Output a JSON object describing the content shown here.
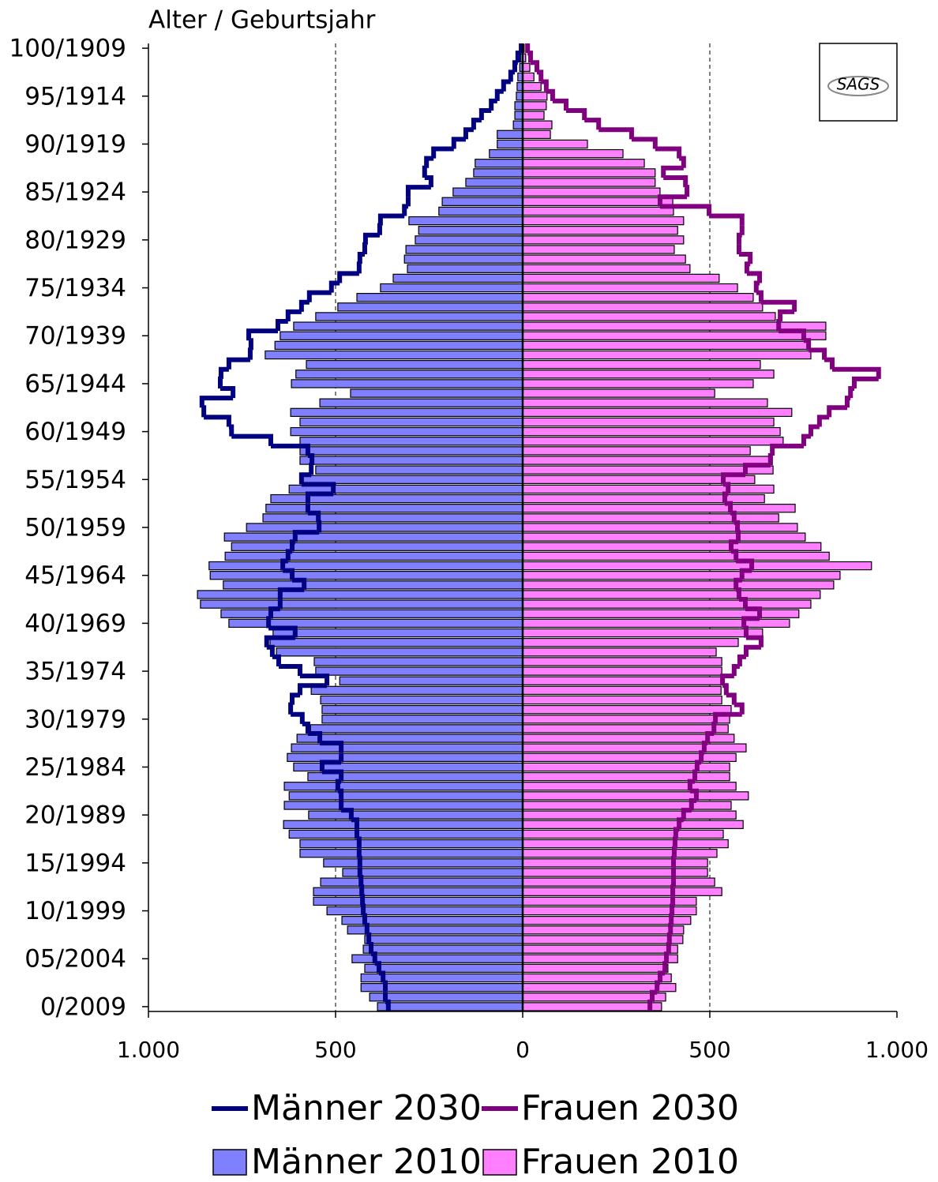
{
  "chart_data": {
    "type": "pyramid",
    "y_axis_label": "Alter / Geburtsjahr",
    "logo": "SAGS",
    "categories": [
      "0/2009",
      null,
      null,
      null,
      null,
      "05/2004",
      null,
      null,
      null,
      null,
      "10/1999",
      null,
      null,
      null,
      null,
      "15/1994",
      null,
      null,
      null,
      null,
      "20/1989",
      null,
      null,
      null,
      null,
      "25/1984",
      null,
      null,
      null,
      null,
      "30/1979",
      null,
      null,
      null,
      null,
      "35/1974",
      null,
      null,
      null,
      null,
      "40/1969",
      null,
      null,
      null,
      null,
      "45/1964",
      null,
      null,
      null,
      null,
      "50/1959",
      null,
      null,
      null,
      null,
      "55/1954",
      null,
      null,
      null,
      null,
      "60/1949",
      null,
      null,
      null,
      null,
      "65/1944",
      null,
      null,
      null,
      null,
      "70/1939",
      null,
      null,
      null,
      null,
      "75/1934",
      null,
      null,
      null,
      null,
      "80/1929",
      null,
      null,
      null,
      null,
      "85/1924",
      null,
      null,
      null,
      null,
      "90/1919",
      null,
      null,
      null,
      null,
      "95/1914",
      null,
      null,
      null,
      null,
      "100/1909"
    ],
    "xlim": [
      -1000,
      1000
    ],
    "xticks": [
      {
        "value": -1000,
        "label": "1.000"
      },
      {
        "value": -500,
        "label": "500"
      },
      0,
      500,
      {
        "value": 1000,
        "label": "1.000"
      }
    ],
    "grid": true,
    "series": [
      {
        "name": "Männer 2030",
        "kind": "line",
        "side": "left",
        "color": "#000080",
        "values": [
          359,
          367,
          367,
          373,
          384,
          395,
          405,
          411,
          416,
          422,
          426,
          428,
          430,
          432,
          435,
          435,
          437,
          437,
          443,
          443,
          458,
          485,
          485,
          494,
          485,
          536,
          485,
          485,
          542,
          574,
          589,
          620,
          616,
          595,
          523,
          595,
          652,
          669,
          684,
          608,
          679,
          673,
          648,
          648,
          584,
          616,
          641,
          627,
          616,
          608,
          544,
          546,
          574,
          574,
          506,
          591,
          565,
          563,
          574,
          673,
          778,
          785,
          852,
          857,
          774,
          808,
          806,
          785,
          728,
          726,
          732,
          654,
          627,
          591,
          570,
          511,
          489,
          437,
          435,
          422,
          420,
          382,
          380,
          316,
          306,
          306,
          245,
          262,
          257,
          238,
          184,
          152,
          131,
          110,
          84,
          68,
          51,
          32,
          21,
          13,
          4
        ]
      },
      {
        "name": "Frauen 2030",
        "kind": "line",
        "side": "right",
        "color": "#800080",
        "values": [
          340,
          346,
          359,
          367,
          380,
          384,
          390,
          392,
          395,
          397,
          399,
          401,
          401,
          403,
          403,
          403,
          405,
          407,
          409,
          418,
          430,
          451,
          464,
          447,
          460,
          466,
          477,
          485,
          494,
          511,
          515,
          586,
          565,
          544,
          534,
          565,
          580,
          597,
          637,
          597,
          591,
          633,
          595,
          578,
          570,
          586,
          612,
          570,
          557,
          576,
          574,
          565,
          555,
          540,
          549,
          536,
          595,
          662,
          667,
          751,
          770,
          793,
          819,
          867,
          876,
          886,
          951,
          827,
          806,
          764,
          751,
          684,
          688,
          726,
          637,
          624,
          633,
          599,
          608,
          578,
          578,
          586,
          586,
          498,
          367,
          439,
          435,
          376,
          430,
          418,
          354,
          291,
          203,
          165,
          116,
          80,
          63,
          49,
          38,
          21,
          13
        ]
      },
      {
        "name": "Männer 2010",
        "kind": "bar",
        "side": "left",
        "color": "#8080ff",
        "values": [
          388,
          409,
          432,
          432,
          422,
          456,
          426,
          422,
          468,
          483,
          523,
          559,
          559,
          540,
          481,
          532,
          595,
          595,
          624,
          639,
          572,
          637,
          624,
          637,
          574,
          612,
          629,
          618,
          603,
          567,
          536,
          536,
          540,
          565,
          489,
          553,
          557,
          658,
          675,
          667,
          785,
          806,
          861,
          869,
          800,
          835,
          838,
          795,
          778,
          797,
          738,
          694,
          686,
          673,
          624,
          589,
          553,
          595,
          595,
          595,
          620,
          595,
          620,
          542,
          460,
          618,
          606,
          578,
          688,
          662,
          648,
          612,
          553,
          494,
          443,
          380,
          346,
          308,
          316,
          312,
          287,
          278,
          304,
          224,
          215,
          186,
          152,
          131,
          127,
          89,
          68,
          68,
          25,
          21,
          21,
          17,
          15,
          13,
          8,
          6,
          4
        ]
      },
      {
        "name": "Frauen 2010",
        "kind": "bar",
        "side": "right",
        "color": "#ff80ff",
        "values": [
          371,
          382,
          409,
          397,
          388,
          414,
          414,
          428,
          430,
          449,
          464,
          464,
          532,
          513,
          494,
          494,
          519,
          549,
          536,
          589,
          570,
          557,
          603,
          570,
          553,
          553,
          570,
          597,
          565,
          549,
          553,
          557,
          532,
          530,
          532,
          532,
          532,
          517,
          576,
          641,
          713,
          738,
          770,
          795,
          831,
          848,
          932,
          819,
          797,
          755,
          734,
          684,
          728,
          646,
          671,
          620,
          669,
          667,
          608,
          696,
          688,
          671,
          719,
          654,
          513,
          616,
          671,
          635,
          770,
          764,
          810,
          810,
          675,
          641,
          616,
          574,
          525,
          447,
          435,
          405,
          430,
          414,
          430,
          403,
          401,
          367,
          354,
          354,
          325,
          268,
          173,
          74,
          78,
          57,
          63,
          65,
          49,
          30,
          19,
          8,
          4
        ]
      }
    ]
  }
}
